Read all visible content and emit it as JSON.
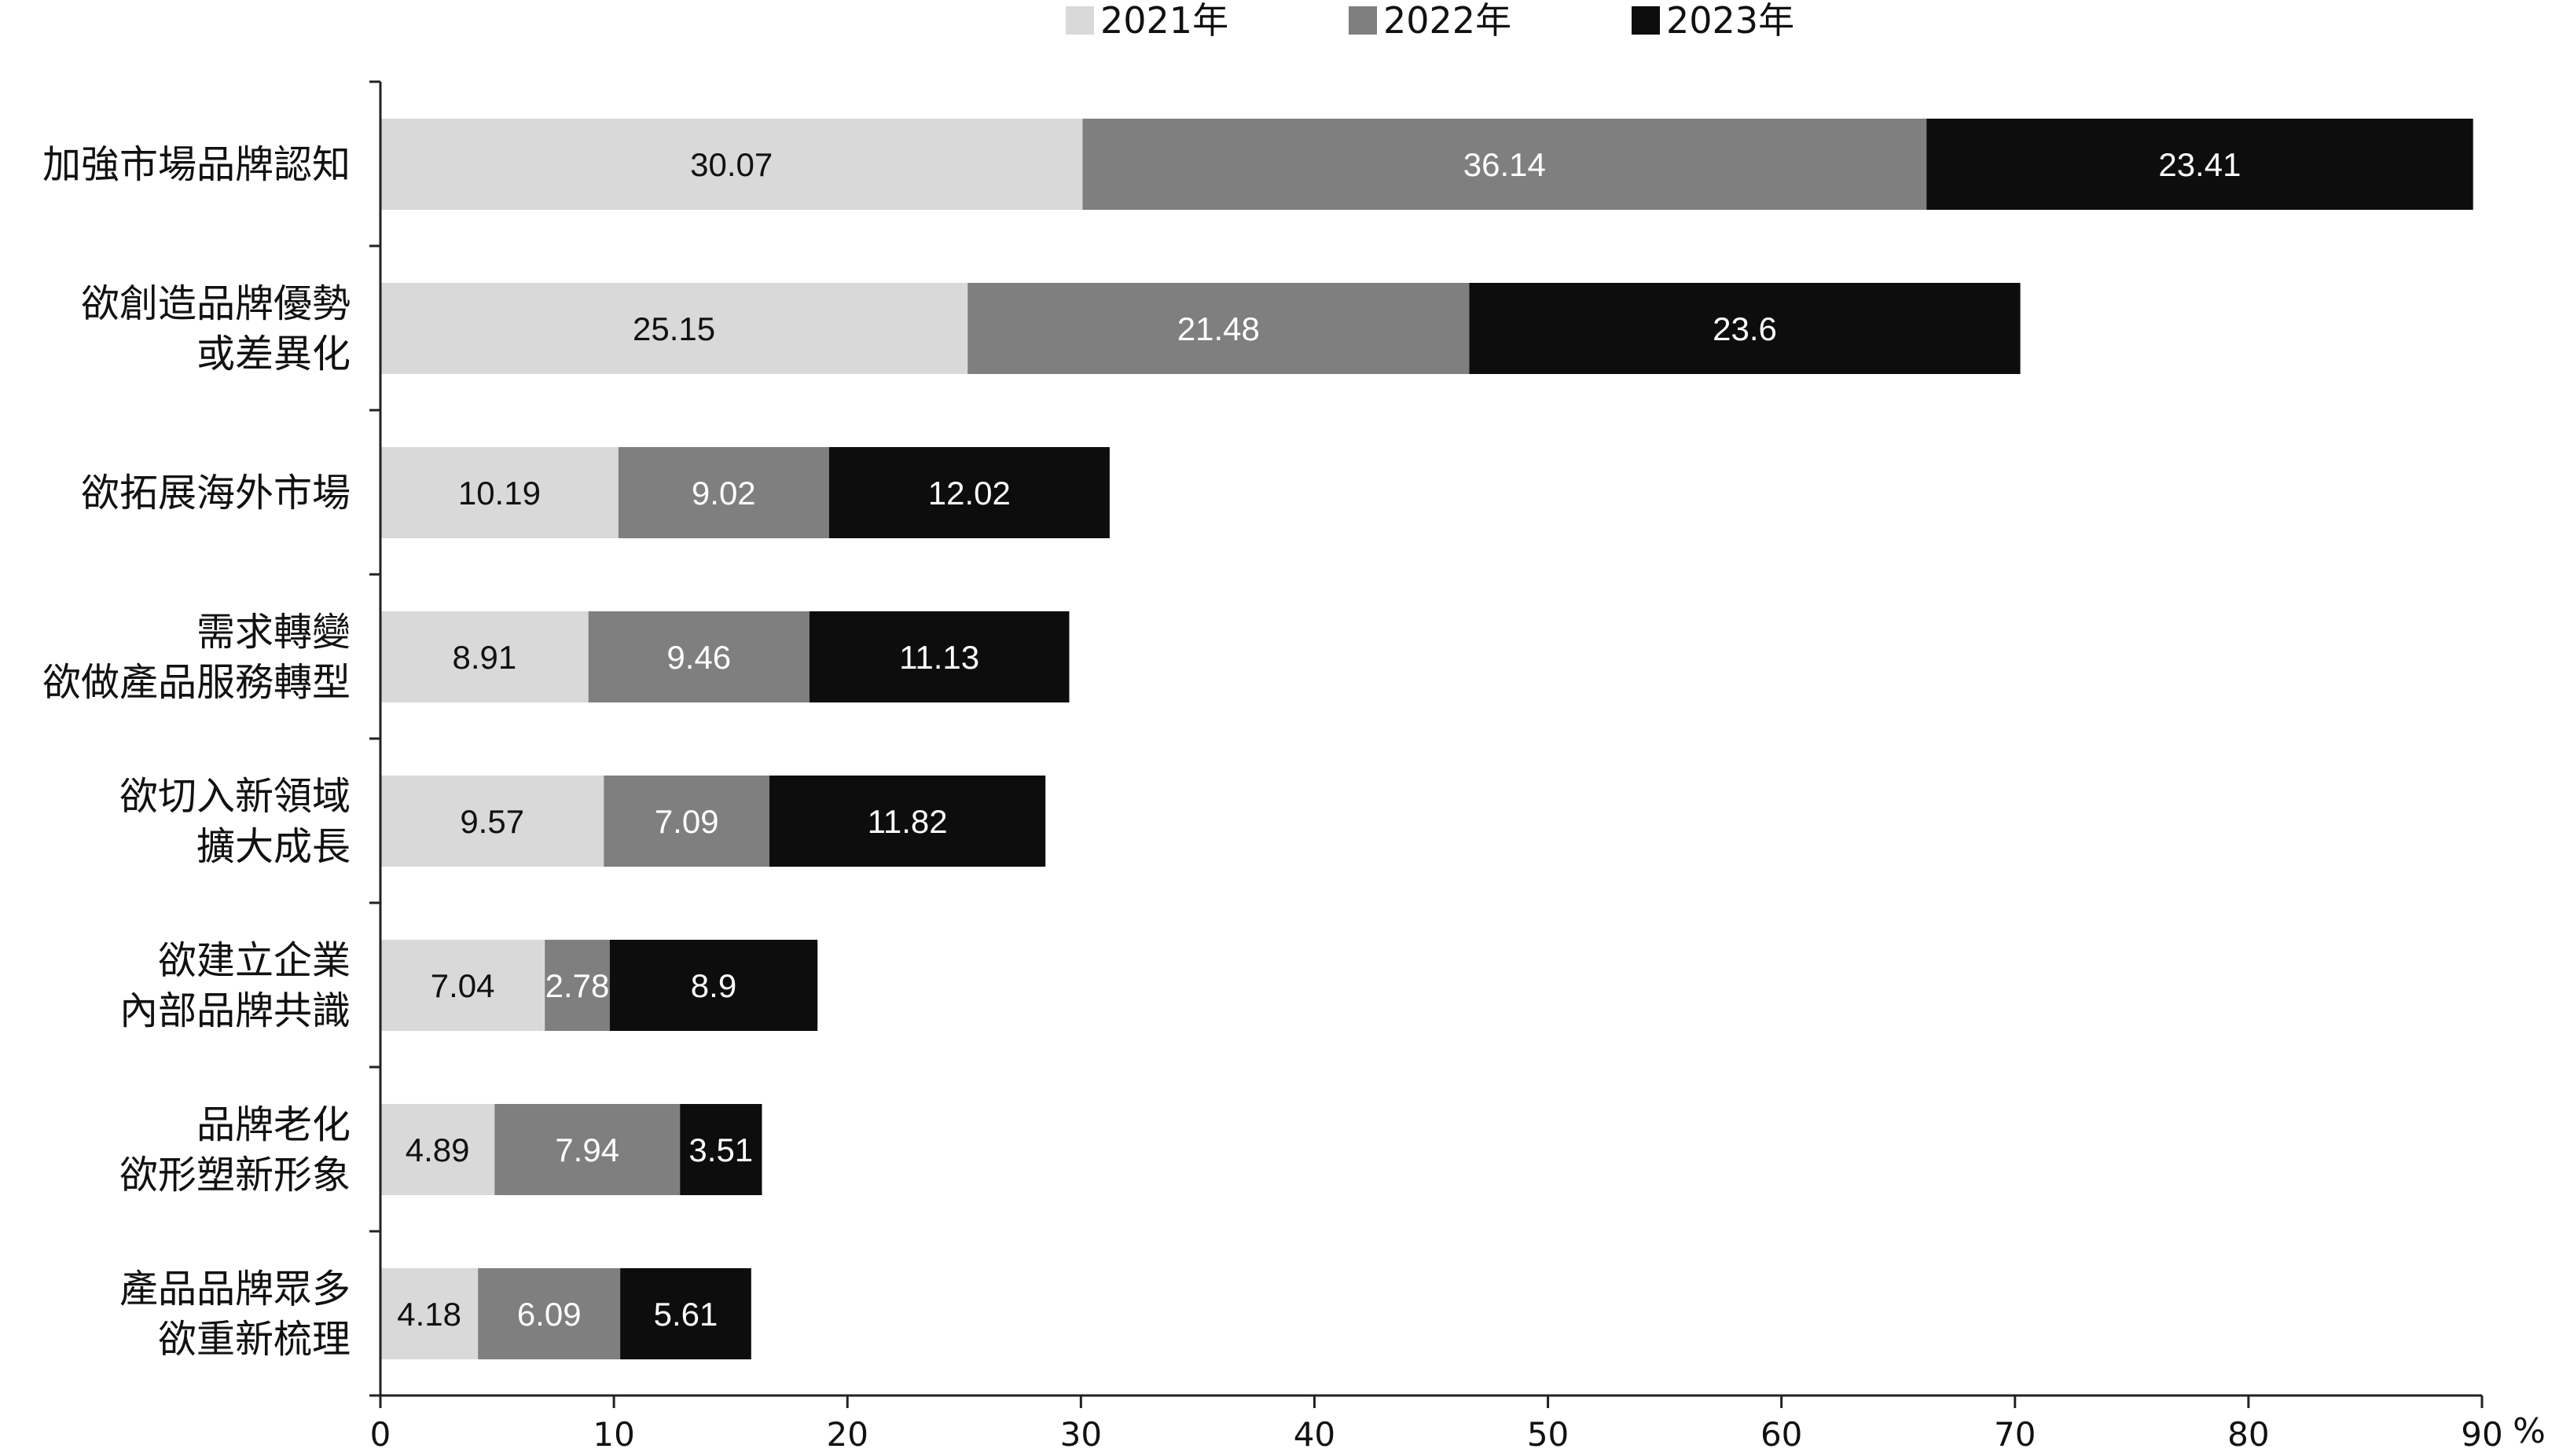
{
  "chart_data": {
    "type": "bar",
    "orientation": "horizontal",
    "stacked": true,
    "categories": [
      [
        "加強市場品牌認知"
      ],
      [
        "欲創造品牌優勢",
        "或差異化"
      ],
      [
        "欲拓展海外市場"
      ],
      [
        "需求轉變",
        "欲做產品服務轉型"
      ],
      [
        "欲切入新領域",
        "擴大成長"
      ],
      [
        "欲建立企業",
        "內部品牌共識"
      ],
      [
        "品牌老化",
        "欲形塑新形象"
      ],
      [
        "產品品牌眾多",
        "欲重新梳理"
      ]
    ],
    "series": [
      {
        "name": "2021年",
        "color": "#d9d9d9",
        "label_color": "#111111",
        "values": [
          30.07,
          25.15,
          10.19,
          8.91,
          9.57,
          7.04,
          4.89,
          4.18
        ]
      },
      {
        "name": "2022年",
        "color": "#7f7f7f",
        "label_color": "#ffffff",
        "values": [
          36.14,
          21.48,
          9.02,
          9.46,
          7.09,
          2.78,
          7.94,
          6.09
        ]
      },
      {
        "name": "2023年",
        "color": "#0d0d0d",
        "label_color": "#ffffff",
        "values": [
          23.41,
          23.6,
          12.02,
          11.13,
          11.82,
          8.9,
          3.51,
          5.61
        ]
      }
    ],
    "xlim": [
      0,
      90
    ],
    "xticks": [
      0,
      10,
      20,
      30,
      40,
      50,
      60,
      70,
      80,
      90
    ],
    "x_unit": "%",
    "legend_position": "top-center",
    "grid": false
  }
}
